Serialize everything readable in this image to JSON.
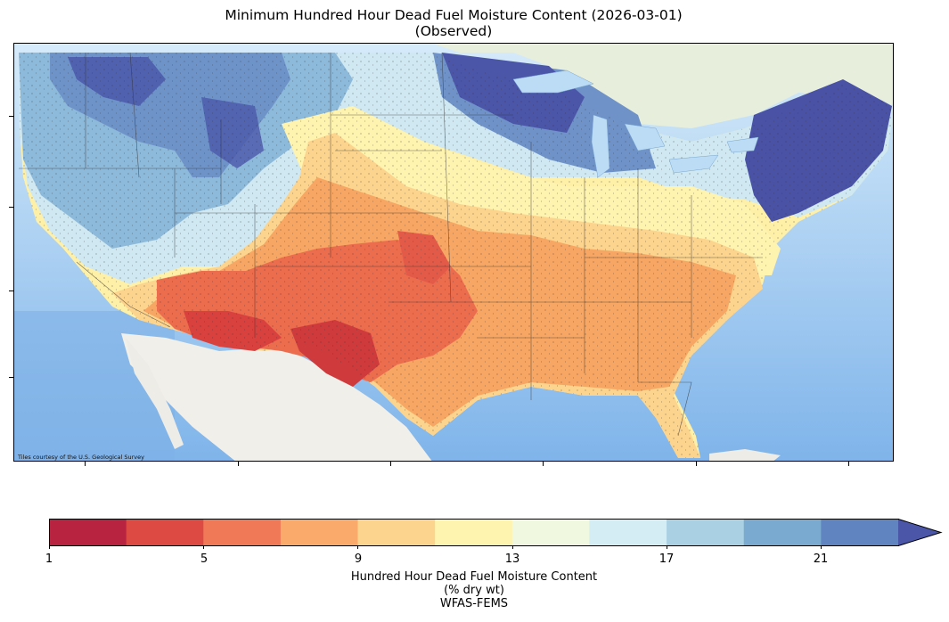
{
  "title": {
    "line1": "Minimum Hundred Hour Dead Fuel Moisture Content (2026-03-01)",
    "line2": "(Observed)"
  },
  "map": {
    "attribution": "Tiles courtesy of the U.S. Geological Survey",
    "basemap_colors": {
      "ocean": "#cfe6f7",
      "deep_ocean": "#8fc0ee",
      "land": "#f2f0ea",
      "canada": "#e6efdc"
    }
  },
  "colorbar": {
    "ticks": [
      "1",
      "5",
      "9",
      "13",
      "17",
      "21"
    ],
    "colors": [
      "#b8233f",
      "#dc4a43",
      "#f07a58",
      "#faab6b",
      "#fdd48d",
      "#fff3b0",
      "#f1f8e0",
      "#d4ecf3",
      "#a9d0e3",
      "#7aaad0",
      "#5f84c0",
      "#4b56a9"
    ],
    "extend": "max",
    "label_line1": "Hundred Hour Dead Fuel Moisture Content",
    "label_line2": "(% dry wt)",
    "label_line3": "WFAS-FEMS"
  }
}
